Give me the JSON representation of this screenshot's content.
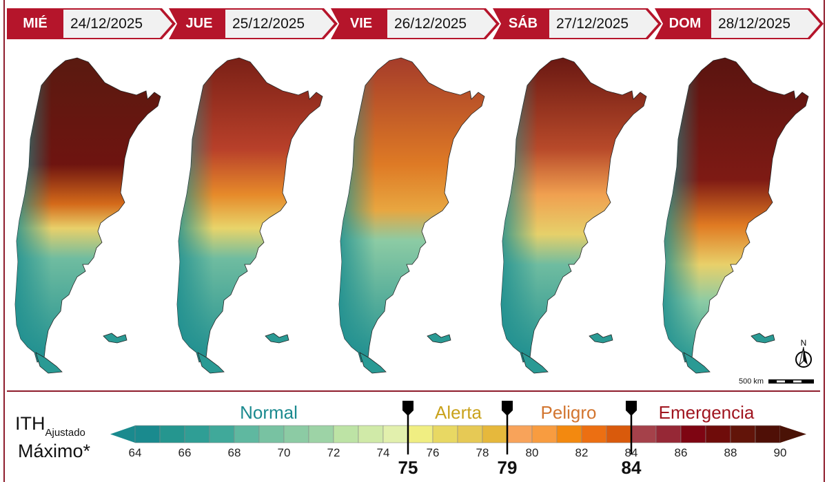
{
  "header": {
    "days": [
      {
        "day": "MIÉ",
        "date": "24/12/2025"
      },
      {
        "day": "JUE",
        "date": "25/12/2025"
      },
      {
        "day": "VIE",
        "date": "26/12/2025"
      },
      {
        "day": "SÁB",
        "date": "27/12/2025"
      },
      {
        "day": "DOM",
        "date": "28/12/2025"
      }
    ]
  },
  "map": {
    "north_label": "N",
    "scale_label": "500 km"
  },
  "legend": {
    "title": "ITH",
    "title_sub": "Ajustado",
    "title_line2": "Máximo*",
    "categories": [
      {
        "label": "Normal",
        "color": "#1b8a8f"
      },
      {
        "label": "Alerta",
        "color": "#c9a21c"
      },
      {
        "label": "Peligro",
        "color": "#d2752f"
      },
      {
        "label": "Emergencia",
        "color": "#a0151f"
      }
    ],
    "ticks": [
      "64",
      "66",
      "68",
      "70",
      "72",
      "74",
      "76",
      "78",
      "80",
      "82",
      "84",
      "86",
      "88",
      "90"
    ],
    "range": [
      64,
      90
    ],
    "thresholds": [
      "75",
      "79",
      "84"
    ],
    "colors": [
      "#1a8a8e",
      "#25968f",
      "#2f9e95",
      "#40a99a",
      "#5fb8a0",
      "#78c2a2",
      "#8ccba4",
      "#9dd3a6",
      "#bde3a5",
      "#d0eaa8",
      "#e2f0ad",
      "#f0ee82",
      "#e8d863",
      "#e6c955",
      "#e6b83c",
      "#f8a35a",
      "#f89c40",
      "#f3890f",
      "#ec6f12",
      "#d95a0c",
      "#a5414a",
      "#962836",
      "#7e0512",
      "#6f0c0a",
      "#621409",
      "#4f0f06"
    ],
    "under_color": "#1a8a8e",
    "over_color": "#4a1206"
  }
}
